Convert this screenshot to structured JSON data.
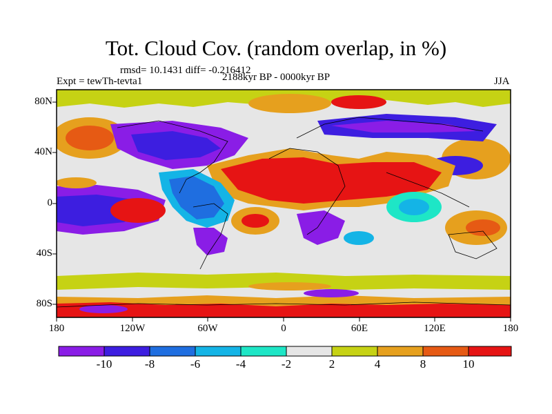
{
  "title": "Tot. Cloud Cov. (random overlap, in %)",
  "stats": "rmsd= 10.1431 diff= -0.216412",
  "experiment": "Expt = tewTh-tevta1",
  "period": "2188kyr BP - 0000kyr BP",
  "season": "JJA",
  "axes": {
    "lon_labels": [
      "180",
      "120W",
      "60W",
      "0",
      "60E",
      "120E",
      "180"
    ],
    "lat_labels": [
      "80N",
      "40N",
      "0",
      "40S",
      "80S"
    ]
  },
  "colorbar": {
    "tick_labels": [
      "-10",
      "-8",
      "-6",
      "-4",
      "-2",
      "2",
      "4",
      "8",
      "10"
    ],
    "colors": [
      "#8a1de6",
      "#3d1ee0",
      "#1f6ee0",
      "#14b4e6",
      "#1ee6c6",
      "#e6e6e6",
      "#c6d214",
      "#e6a01e",
      "#e65a14",
      "#e61414"
    ]
  }
}
